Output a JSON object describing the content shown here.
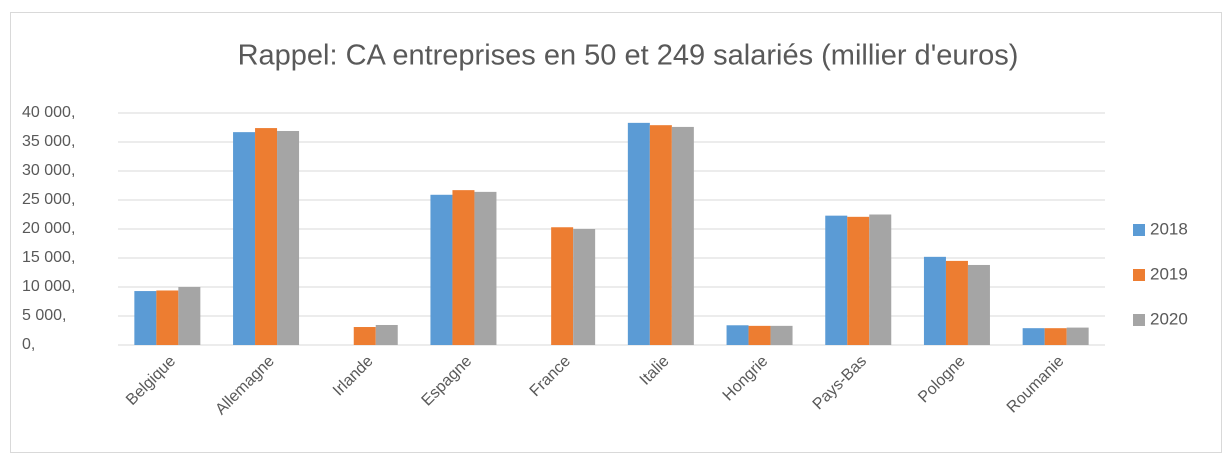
{
  "chart_data": {
    "type": "bar",
    "title": "Rappel: CA entreprises en 50 et 249 salariés (millier d'euros)",
    "categories": [
      "Belgique",
      "Allemagne",
      "Irlande",
      "Espagne",
      "France",
      "Italie",
      "Hongrie",
      "Pays-Bas",
      "Pologne",
      "Roumanie"
    ],
    "series": [
      {
        "name": "2018",
        "color": "#5b9bd5",
        "values": [
          9300,
          36700,
          null,
          25900,
          null,
          38300,
          3400,
          22300,
          15200,
          2900
        ]
      },
      {
        "name": "2019",
        "color": "#ed7d31",
        "values": [
          9400,
          37400,
          3100,
          26700,
          20300,
          37900,
          3300,
          22100,
          14500,
          2900
        ]
      },
      {
        "name": "2020",
        "color": "#a5a5a5",
        "values": [
          10000,
          36900,
          3450,
          26400,
          20000,
          37600,
          3300,
          22500,
          13800,
          3000
        ]
      }
    ],
    "ylim": [
      0,
      40000
    ],
    "yticks": [
      {
        "value": 0,
        "label": "0,"
      },
      {
        "value": 5000,
        "label": "5 000,"
      },
      {
        "value": 10000,
        "label": "10 000,"
      },
      {
        "value": 15000,
        "label": "15 000,"
      },
      {
        "value": 20000,
        "label": "20 000,"
      },
      {
        "value": 25000,
        "label": "25 000,"
      },
      {
        "value": 30000,
        "label": "30 000,"
      },
      {
        "value": 35000,
        "label": "35 000,"
      },
      {
        "value": 40000,
        "label": "40 000,"
      }
    ],
    "grid": true,
    "legend": "right"
  }
}
